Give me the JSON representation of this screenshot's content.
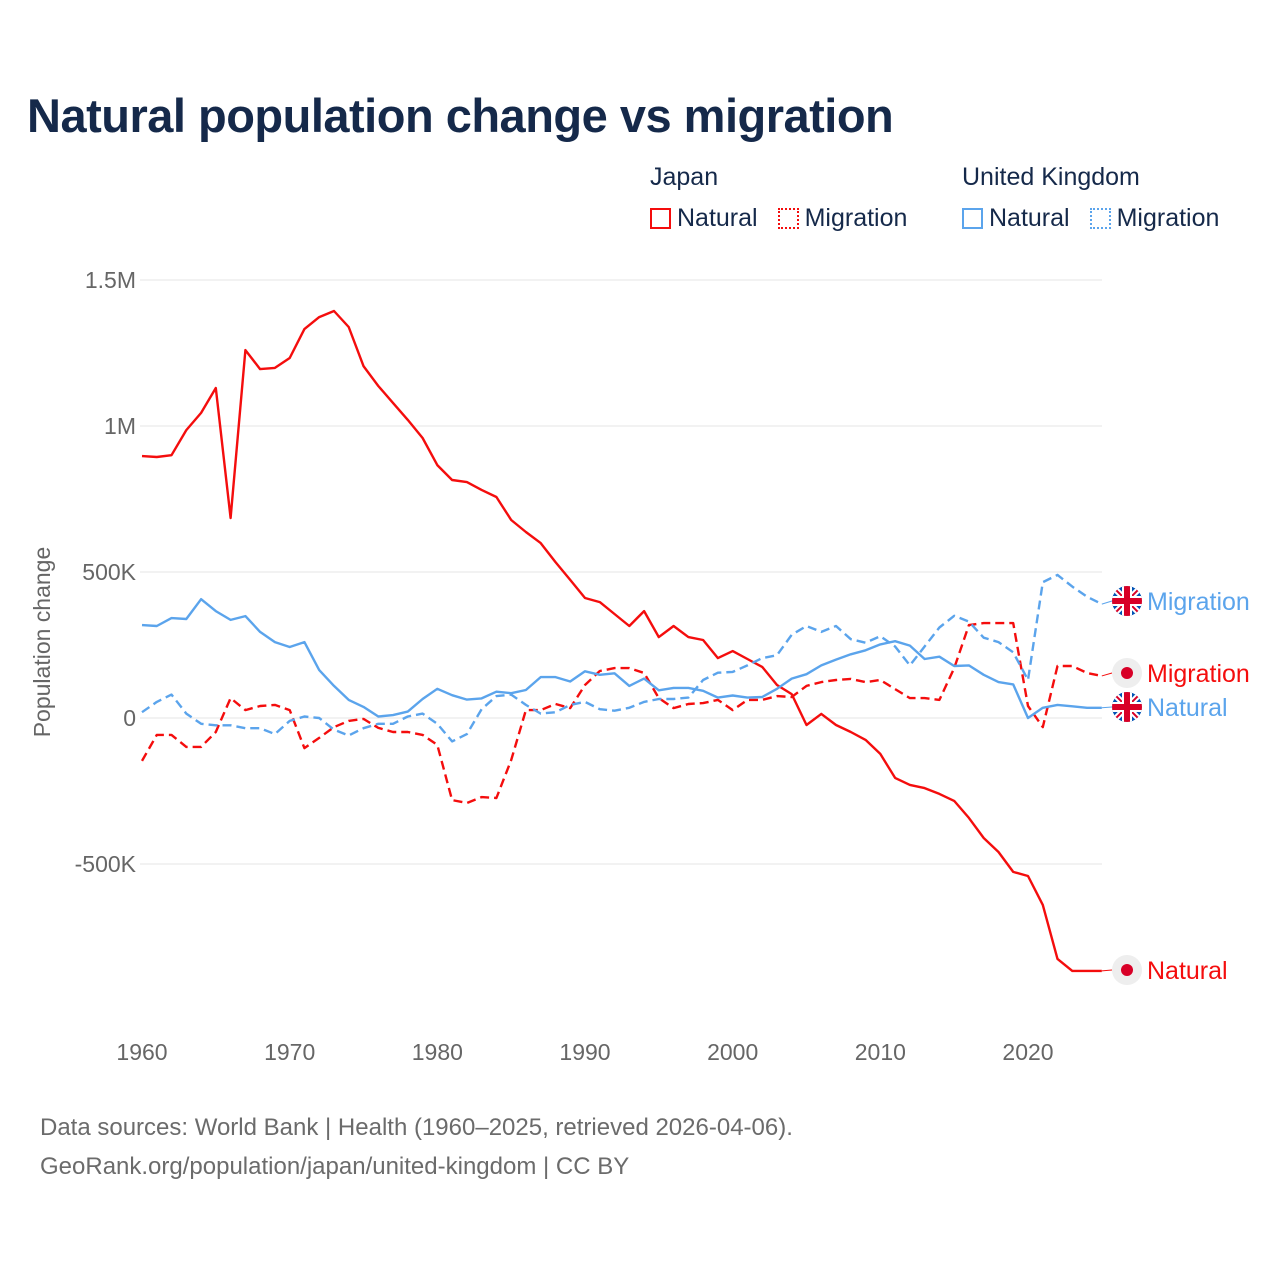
{
  "title": "Natural population change vs migration",
  "legend": {
    "groups": [
      {
        "name": "Japan",
        "color": "#f40d0d",
        "items": [
          "Natural",
          "Migration"
        ]
      },
      {
        "name": "United Kingdom",
        "color": "#5ba4ec",
        "items": [
          "Natural",
          "Migration"
        ]
      }
    ]
  },
  "footer": {
    "line1": "Data sources: World Bank | Health (1960–2025, retrieved 2026-04-06).",
    "line2": "GeoRank.org/population/japan/united-kingdom | CC BY"
  },
  "chart_data": {
    "type": "line",
    "title": "Natural population change vs migration",
    "xlabel": "",
    "ylabel": "Population change",
    "xlim": [
      1960,
      2025
    ],
    "ylim": [
      -1000000,
      1500000
    ],
    "x_ticks": [
      1960,
      1970,
      1980,
      1990,
      2000,
      2010,
      2020
    ],
    "x_tick_labels": [
      "1960",
      "1970",
      "1980",
      "1990",
      "2000",
      "2010",
      "2020"
    ],
    "y_ticks": [
      -500000,
      0,
      500000,
      1000000,
      1500000
    ],
    "y_tick_labels": [
      "-500K",
      "0",
      "500K",
      "1M",
      "1.5M"
    ],
    "grid": true,
    "legend_position": "top-right",
    "x_start": 1960,
    "series": [
      {
        "name": "Japan Natural",
        "label": "Natural",
        "country": "Japan",
        "style": "solid",
        "color": "#f40d0d",
        "values": [
          897000,
          894000,
          900000,
          986000,
          1045000,
          1130000,
          685000,
          1260000,
          1195000,
          1199000,
          1233000,
          1332000,
          1373000,
          1394000,
          1339000,
          1205000,
          1137000,
          1079000,
          1021000,
          959000,
          866000,
          815000,
          808000,
          781000,
          757000,
          678000,
          637000,
          599000,
          534000,
          473000,
          411000,
          397000,
          356000,
          315000,
          366000,
          277000,
          315000,
          277000,
          267000,
          205000,
          229000,
          202000,
          175000,
          113000,
          82000,
          -24000,
          14000,
          -24000,
          -48000,
          -75000,
          -123000,
          -205000,
          -229000,
          -240000,
          -260000,
          -284000,
          -342000,
          -411000,
          -459000,
          -527000,
          -541000,
          -640000,
          -825000,
          -866000,
          -866000,
          -866000
        ]
      },
      {
        "name": "Japan Migration",
        "label": "Migration",
        "country": "Japan",
        "style": "dashed",
        "color": "#f40d0d",
        "values": [
          -147000,
          -58000,
          -58000,
          -99000,
          -99000,
          -48000,
          68000,
          27000,
          41000,
          45000,
          27000,
          -103000,
          -68000,
          -31000,
          -10000,
          -3000,
          -34000,
          -48000,
          -48000,
          -58000,
          -92000,
          -281000,
          -291000,
          -271000,
          -274000,
          -144000,
          27000,
          27000,
          48000,
          34000,
          113000,
          161000,
          171000,
          171000,
          154000,
          68000,
          34000,
          48000,
          51000,
          62000,
          27000,
          62000,
          62000,
          75000,
          72000,
          110000,
          123000,
          130000,
          134000,
          123000,
          130000,
          99000,
          68000,
          68000,
          62000,
          171000,
          318000,
          325000,
          325000,
          325000,
          41000,
          -31000,
          178000,
          178000,
          154000,
          144000
        ]
      },
      {
        "name": "United Kingdom Natural",
        "label": "Natural",
        "country": "United Kingdom",
        "style": "solid",
        "color": "#5ba4ec",
        "values": [
          318000,
          315000,
          342000,
          339000,
          407000,
          366000,
          336000,
          349000,
          295000,
          260000,
          243000,
          260000,
          164000,
          110000,
          62000,
          38000,
          5000,
          10000,
          22000,
          65000,
          100000,
          78000,
          63000,
          67000,
          90000,
          85000,
          96000,
          140000,
          140000,
          125000,
          160000,
          148000,
          153000,
          110000,
          135000,
          95000,
          103000,
          103000,
          93000,
          70000,
          77000,
          70000,
          72000,
          100000,
          135000,
          150000,
          180000,
          200000,
          218000,
          232000,
          252000,
          263000,
          248000,
          202000,
          210000,
          178000,
          180000,
          148000,
          123000,
          115000,
          0,
          35000,
          45000,
          40000,
          35000,
          35000
        ]
      },
      {
        "name": "United Kingdom Migration",
        "label": "Migration",
        "country": "United Kingdom",
        "style": "dashed",
        "color": "#5ba4ec",
        "values": [
          20000,
          55000,
          80000,
          15000,
          -20000,
          -25000,
          -25000,
          -35000,
          -35000,
          -55000,
          -10000,
          5000,
          0,
          -40000,
          -60000,
          -35000,
          -20000,
          -20000,
          5000,
          15000,
          -20000,
          -80000,
          -55000,
          30000,
          75000,
          80000,
          45000,
          15000,
          20000,
          45000,
          55000,
          30000,
          25000,
          35000,
          55000,
          65000,
          65000,
          70000,
          130000,
          155000,
          158000,
          180000,
          205000,
          215000,
          285000,
          315000,
          295000,
          315000,
          270000,
          258000,
          280000,
          245000,
          180000,
          245000,
          310000,
          350000,
          330000,
          275000,
          260000,
          225000,
          130000,
          465000,
          490000,
          450000,
          415000,
          390000
        ]
      }
    ]
  }
}
